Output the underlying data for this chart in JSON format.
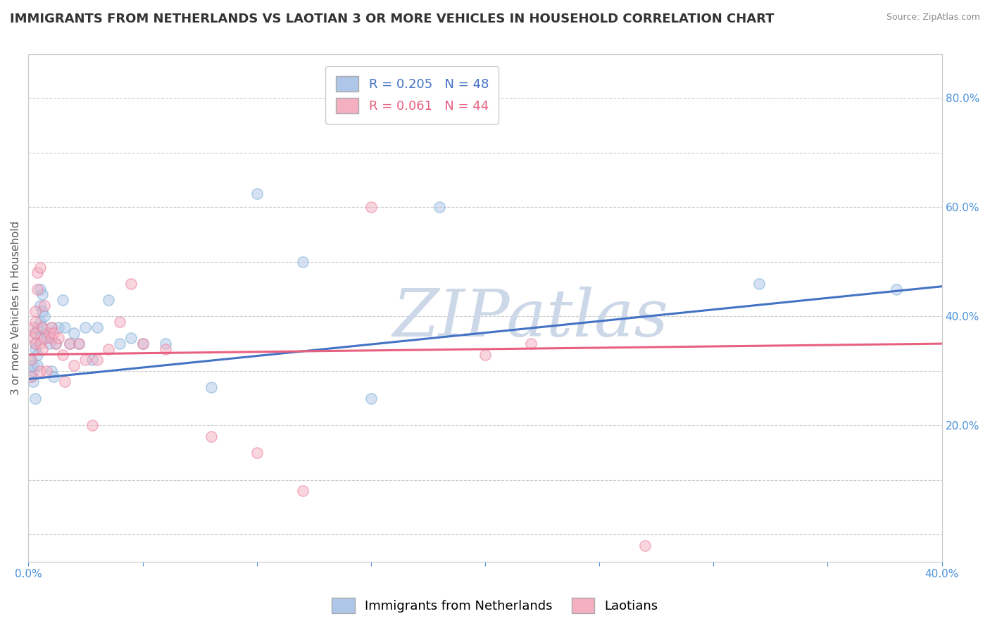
{
  "title": "IMMIGRANTS FROM NETHERLANDS VS LAOTIAN 3 OR MORE VEHICLES IN HOUSEHOLD CORRELATION CHART",
  "source": "Source: ZipAtlas.com",
  "ylabel": "3 or more Vehicles in Household",
  "xlim": [
    0.0,
    0.4
  ],
  "ylim": [
    -0.05,
    0.88
  ],
  "xticks": [
    0.0,
    0.05,
    0.1,
    0.15,
    0.2,
    0.25,
    0.3,
    0.35,
    0.4
  ],
  "yticks_right": [
    0.2,
    0.4,
    0.6,
    0.8
  ],
  "yticklabels_right": [
    "20.0%",
    "40.0%",
    "60.0%",
    "80.0%"
  ],
  "legend_series": [
    {
      "label": "Immigrants from Netherlands",
      "R": 0.205,
      "N": 48,
      "color": "#aec6e8"
    },
    {
      "label": "Laotians",
      "R": 0.061,
      "N": 44,
      "color": "#f4afc0"
    }
  ],
  "blue_scatter": {
    "x": [
      0.001,
      0.001,
      0.002,
      0.002,
      0.002,
      0.003,
      0.003,
      0.003,
      0.003,
      0.004,
      0.004,
      0.004,
      0.005,
      0.005,
      0.005,
      0.005,
      0.006,
      0.006,
      0.006,
      0.007,
      0.008,
      0.008,
      0.009,
      0.01,
      0.01,
      0.011,
      0.012,
      0.013,
      0.015,
      0.016,
      0.018,
      0.02,
      0.022,
      0.025,
      0.028,
      0.03,
      0.035,
      0.04,
      0.045,
      0.05,
      0.06,
      0.08,
      0.1,
      0.12,
      0.15,
      0.18,
      0.32,
      0.38
    ],
    "y": [
      0.32,
      0.29,
      0.3,
      0.31,
      0.28,
      0.35,
      0.37,
      0.34,
      0.25,
      0.31,
      0.33,
      0.38,
      0.42,
      0.45,
      0.36,
      0.39,
      0.38,
      0.41,
      0.44,
      0.4,
      0.37,
      0.36,
      0.35,
      0.38,
      0.3,
      0.29,
      0.35,
      0.38,
      0.43,
      0.38,
      0.35,
      0.37,
      0.35,
      0.38,
      0.32,
      0.38,
      0.43,
      0.35,
      0.36,
      0.35,
      0.35,
      0.27,
      0.625,
      0.5,
      0.25,
      0.6,
      0.46,
      0.45
    ]
  },
  "pink_scatter": {
    "x": [
      0.001,
      0.001,
      0.002,
      0.002,
      0.003,
      0.003,
      0.003,
      0.003,
      0.004,
      0.004,
      0.005,
      0.005,
      0.005,
      0.006,
      0.006,
      0.007,
      0.007,
      0.008,
      0.009,
      0.01,
      0.01,
      0.011,
      0.012,
      0.013,
      0.015,
      0.016,
      0.018,
      0.02,
      0.022,
      0.025,
      0.028,
      0.03,
      0.035,
      0.04,
      0.045,
      0.05,
      0.06,
      0.08,
      0.1,
      0.12,
      0.15,
      0.2,
      0.22,
      0.27
    ],
    "y": [
      0.32,
      0.29,
      0.38,
      0.36,
      0.41,
      0.37,
      0.35,
      0.39,
      0.48,
      0.45,
      0.49,
      0.35,
      0.3,
      0.38,
      0.34,
      0.36,
      0.42,
      0.3,
      0.37,
      0.36,
      0.38,
      0.37,
      0.35,
      0.36,
      0.33,
      0.28,
      0.35,
      0.31,
      0.35,
      0.32,
      0.2,
      0.32,
      0.34,
      0.39,
      0.46,
      0.35,
      0.34,
      0.18,
      0.15,
      0.08,
      0.6,
      0.33,
      0.35,
      -0.02
    ]
  },
  "blue_trend": {
    "x": [
      0.0,
      0.4
    ],
    "y": [
      0.285,
      0.455
    ]
  },
  "pink_trend": {
    "x": [
      0.0,
      0.4
    ],
    "y": [
      0.33,
      0.35
    ]
  },
  "scatter_size": 120,
  "scatter_alpha": 0.5,
  "blue_color": "#aec6e8",
  "pink_color": "#f4afc0",
  "blue_edge_color": "#7aafd4",
  "pink_edge_color": "#e87fa0",
  "blue_line_color": "#4472c4",
  "pink_line_color": "#e86080",
  "watermark": "ZIPatlas",
  "watermark_color": "#ccd8e8",
  "background_color": "#ffffff",
  "title_fontsize": 13,
  "label_fontsize": 11,
  "tick_fontsize": 11,
  "legend_fontsize": 13
}
